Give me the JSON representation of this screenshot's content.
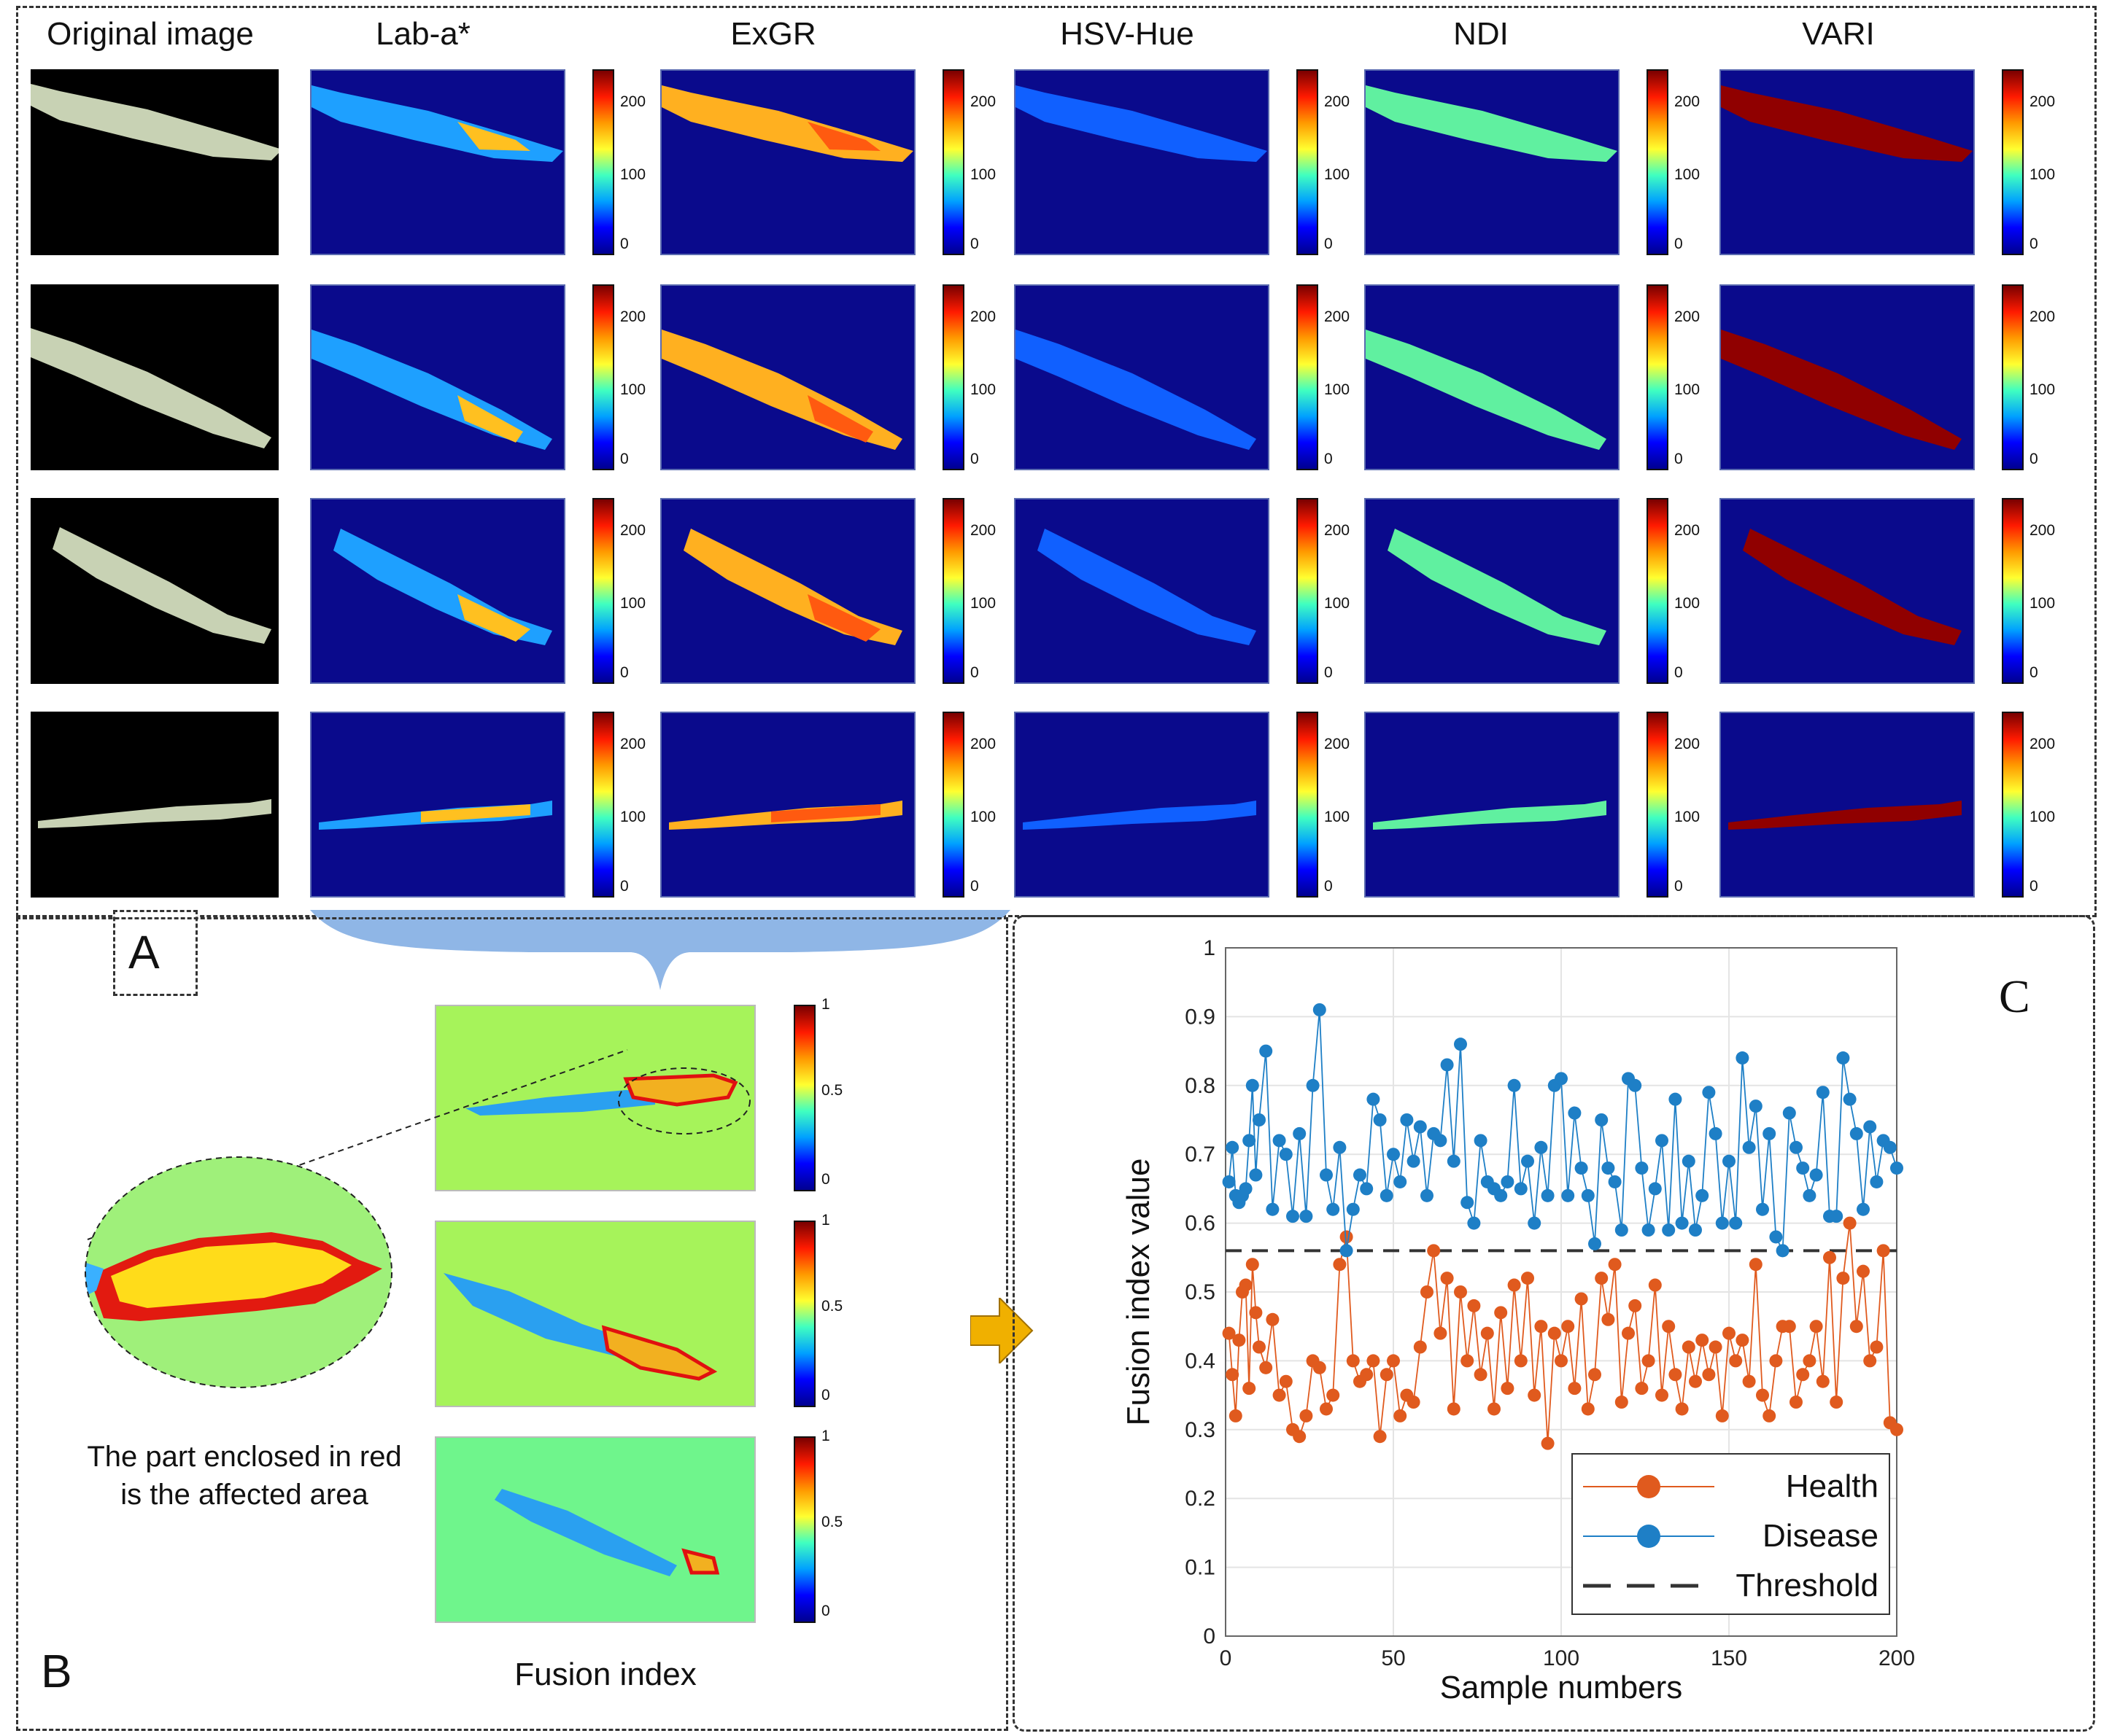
{
  "panel_a": {
    "letter": "A",
    "columns": [
      "Original image",
      "Lab-a*",
      "ExGR",
      "HSV-Hue",
      "NDI",
      "VARI"
    ],
    "colorbar_ticks": [
      "200",
      "100",
      "0"
    ],
    "map_colors": {
      "Lab-a*": "#1ea0ff",
      "ExGR": "#ffb020",
      "HSV-Hue": "#1060ff",
      "NDI": "#60f0a0",
      "VARI": "#900000"
    }
  },
  "panel_b": {
    "letter": "B",
    "caption": "Fusion index",
    "note": "The part enclosed in red is the affected area",
    "colorbar_ticks": [
      "1",
      "0.5",
      "0"
    ]
  },
  "panel_c": {
    "letter": "C"
  },
  "chart_data": {
    "type": "line",
    "xlabel": "Sample numbers",
    "ylabel": "Fusion index value",
    "xlim": [
      0,
      200
    ],
    "ylim": [
      0,
      1
    ],
    "xticks": [
      0,
      50,
      100,
      150,
      200
    ],
    "yticks": [
      0,
      0.1,
      0.2,
      0.3,
      0.4,
      0.5,
      0.6,
      0.7,
      0.8,
      0.9,
      1
    ],
    "grid": true,
    "legend_position": "bottom-right",
    "threshold": 0.56,
    "series": [
      {
        "name": "Health",
        "color": "#e05a1e",
        "x": [
          1,
          2,
          3,
          4,
          5,
          6,
          7,
          8,
          9,
          10,
          12,
          14,
          16,
          18,
          20,
          22,
          24,
          26,
          28,
          30,
          32,
          34,
          36,
          38,
          40,
          42,
          44,
          46,
          48,
          50,
          52,
          54,
          56,
          58,
          60,
          62,
          64,
          66,
          68,
          70,
          72,
          74,
          76,
          78,
          80,
          82,
          84,
          86,
          88,
          90,
          92,
          94,
          96,
          98,
          100,
          102,
          104,
          106,
          108,
          110,
          112,
          114,
          116,
          118,
          120,
          122,
          124,
          126,
          128,
          130,
          132,
          134,
          136,
          138,
          140,
          142,
          144,
          146,
          148,
          150,
          152,
          154,
          156,
          158,
          160,
          162,
          164,
          166,
          168,
          170,
          172,
          174,
          176,
          178,
          180,
          182,
          184,
          186,
          188,
          190,
          192,
          194,
          196,
          198,
          200
        ],
        "values": [
          0.44,
          0.38,
          0.32,
          0.43,
          0.5,
          0.51,
          0.36,
          0.54,
          0.47,
          0.42,
          0.39,
          0.46,
          0.35,
          0.37,
          0.3,
          0.29,
          0.32,
          0.4,
          0.39,
          0.33,
          0.35,
          0.54,
          0.58,
          0.4,
          0.37,
          0.38,
          0.4,
          0.29,
          0.38,
          0.4,
          0.32,
          0.35,
          0.34,
          0.42,
          0.5,
          0.56,
          0.44,
          0.52,
          0.33,
          0.5,
          0.4,
          0.48,
          0.38,
          0.44,
          0.33,
          0.47,
          0.36,
          0.51,
          0.4,
          0.52,
          0.35,
          0.45,
          0.28,
          0.44,
          0.4,
          0.45,
          0.36,
          0.49,
          0.33,
          0.38,
          0.52,
          0.46,
          0.54,
          0.34,
          0.44,
          0.48,
          0.36,
          0.4,
          0.51,
          0.35,
          0.45,
          0.38,
          0.33,
          0.42,
          0.37,
          0.43,
          0.38,
          0.42,
          0.32,
          0.44,
          0.4,
          0.43,
          0.37,
          0.54,
          0.35,
          0.32,
          0.4,
          0.45,
          0.45,
          0.34,
          0.38,
          0.4,
          0.45,
          0.37,
          0.55,
          0.34,
          0.52,
          0.6,
          0.45,
          0.53,
          0.4,
          0.42,
          0.56,
          0.31,
          0.3
        ]
      },
      {
        "name": "Disease",
        "color": "#1e7fc6",
        "x": [
          1,
          2,
          3,
          4,
          5,
          6,
          7,
          8,
          9,
          10,
          12,
          14,
          16,
          18,
          20,
          22,
          24,
          26,
          28,
          30,
          32,
          34,
          36,
          38,
          40,
          42,
          44,
          46,
          48,
          50,
          52,
          54,
          56,
          58,
          60,
          62,
          64,
          66,
          68,
          70,
          72,
          74,
          76,
          78,
          80,
          82,
          84,
          86,
          88,
          90,
          92,
          94,
          96,
          98,
          100,
          102,
          104,
          106,
          108,
          110,
          112,
          114,
          116,
          118,
          120,
          122,
          124,
          126,
          128,
          130,
          132,
          134,
          136,
          138,
          140,
          142,
          144,
          146,
          148,
          150,
          152,
          154,
          156,
          158,
          160,
          162,
          164,
          166,
          168,
          170,
          172,
          174,
          176,
          178,
          180,
          182,
          184,
          186,
          188,
          190,
          192,
          194,
          196,
          198,
          200
        ],
        "values": [
          0.66,
          0.71,
          0.64,
          0.63,
          0.64,
          0.65,
          0.72,
          0.8,
          0.67,
          0.75,
          0.85,
          0.62,
          0.72,
          0.7,
          0.61,
          0.73,
          0.61,
          0.8,
          0.91,
          0.67,
          0.62,
          0.71,
          0.56,
          0.62,
          0.67,
          0.65,
          0.78,
          0.75,
          0.64,
          0.7,
          0.66,
          0.75,
          0.69,
          0.74,
          0.64,
          0.73,
          0.72,
          0.83,
          0.69,
          0.86,
          0.63,
          0.6,
          0.72,
          0.66,
          0.65,
          0.64,
          0.66,
          0.8,
          0.65,
          0.69,
          0.6,
          0.71,
          0.64,
          0.8,
          0.81,
          0.64,
          0.76,
          0.68,
          0.64,
          0.57,
          0.75,
          0.68,
          0.66,
          0.59,
          0.81,
          0.8,
          0.68,
          0.59,
          0.65,
          0.72,
          0.59,
          0.78,
          0.6,
          0.69,
          0.59,
          0.64,
          0.79,
          0.73,
          0.6,
          0.69,
          0.6,
          0.84,
          0.71,
          0.77,
          0.62,
          0.73,
          0.58,
          0.56,
          0.76,
          0.71,
          0.68,
          0.64,
          0.67,
          0.79,
          0.61,
          0.61,
          0.84,
          0.78,
          0.73,
          0.62,
          0.74,
          0.66,
          0.72,
          0.71,
          0.68
        ]
      },
      {
        "name": "Threshold",
        "color": "#333333",
        "dashed": true
      }
    ]
  }
}
